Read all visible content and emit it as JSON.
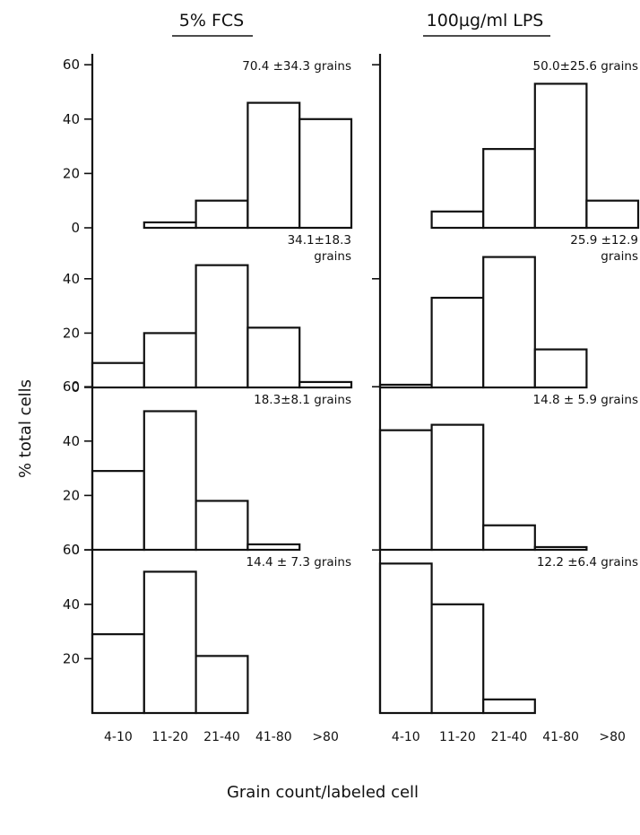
{
  "chart_data": {
    "type": "bar",
    "ylabel": "% total cells",
    "xlabel": "Grain count/labeled cell",
    "categories": [
      "4-10",
      "11-20",
      "21-40",
      "41-80",
      ">80"
    ],
    "columns": [
      {
        "title": "5% FCS",
        "panels": [
          {
            "annotation": [
              "70.4 ±34.3 grains"
            ],
            "ylim": [
              0,
              60
            ],
            "yticks": [
              0,
              20,
              40,
              60
            ],
            "values": [
              0,
              2,
              10,
              46,
              40
            ]
          },
          {
            "annotation": [
              "34.1±18.3",
              "grains"
            ],
            "ylim": [
              0,
              50
            ],
            "yticks": [
              0,
              20,
              40
            ],
            "values": [
              9,
              20,
              45,
              22,
              2
            ]
          },
          {
            "annotation": [
              "18.3±8.1 grains"
            ],
            "ylim": [
              0,
              60
            ],
            "yticks": [
              0,
              20,
              40,
              60
            ],
            "values": [
              29,
              51,
              18,
              2,
              0
            ]
          },
          {
            "annotation": [
              "14.4 ± 7.3 grains"
            ],
            "ylim": [
              0,
              60
            ],
            "yticks": [
              20,
              40,
              60
            ],
            "values": [
              29,
              52,
              21,
              0,
              0
            ]
          }
        ]
      },
      {
        "title": "100µg/ml LPS",
        "panels": [
          {
            "annotation": [
              "50.0±25.6 grains"
            ],
            "ylim": [
              0,
              60
            ],
            "yticks": [],
            "values": [
              0,
              6,
              29,
              53,
              10
            ]
          },
          {
            "annotation": [
              "25.9 ±12.9",
              "grains"
            ],
            "ylim": [
              0,
              50
            ],
            "yticks": [],
            "values": [
              1,
              33,
              48,
              14,
              0
            ]
          },
          {
            "annotation": [
              "14.8 ± 5.9 grains"
            ],
            "ylim": [
              0,
              60
            ],
            "yticks": [],
            "values": [
              44,
              46,
              9,
              1,
              0
            ]
          },
          {
            "annotation": [
              "12.2 ±6.4 grains"
            ],
            "ylim": [
              0,
              60
            ],
            "yticks": [],
            "values": [
              55,
              40,
              5,
              0,
              0
            ]
          }
        ]
      }
    ]
  }
}
